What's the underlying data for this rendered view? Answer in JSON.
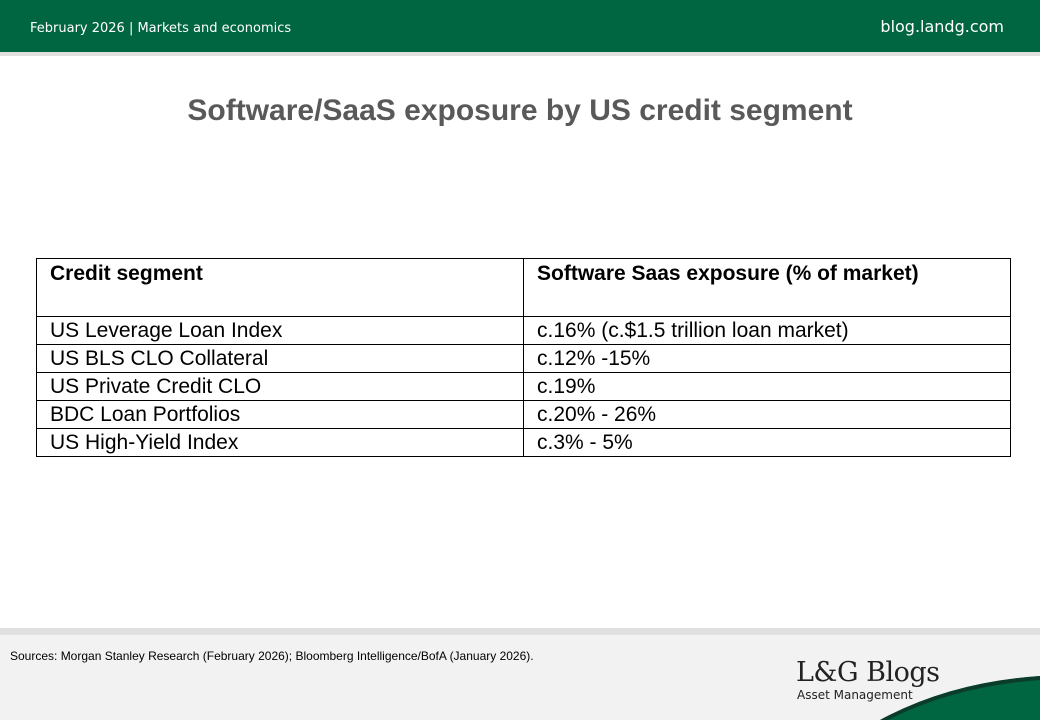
{
  "header": {
    "date_section": "February 2026 | Markets and economics",
    "site": "blog.landg.com"
  },
  "title": "Software/SaaS exposure by US credit segment",
  "table": {
    "columns": [
      "Credit segment",
      "Software Saas exposure (% of market)"
    ],
    "rows": [
      [
        "US Leverage Loan Index",
        "c.16% (c.$1.5 trillion loan market)"
      ],
      [
        "US BLS CLO Collateral",
        "c.12% -15%"
      ],
      [
        "US Private Credit CLO",
        "c.19%"
      ],
      [
        "BDC Loan Portfolios",
        "c.20% - 26%"
      ],
      [
        "US High-Yield Index",
        "c.3% - 5%"
      ]
    ]
  },
  "footer": {
    "sources": "Sources: Morgan Stanley Research (February 2026); Bloomberg Intelligence/BofA (January 2026).",
    "logo": "L&G Blogs",
    "logo_sub": "Asset Management"
  },
  "colors": {
    "brand_green": "#006541"
  }
}
